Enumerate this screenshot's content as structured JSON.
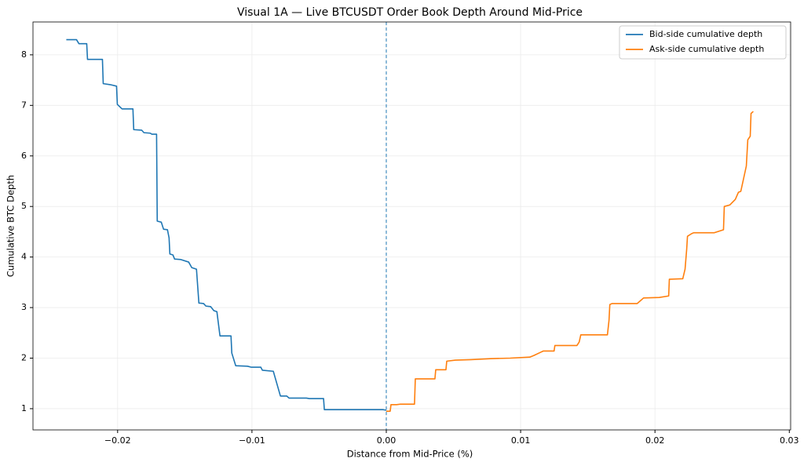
{
  "chart_data": {
    "type": "line",
    "title": "Visual 1A — Live BTCUSDT Order Book Depth Around Mid-Price",
    "x_label": "Distance from Mid-Price (%)",
    "y_label": "Cumulative BTC Depth",
    "xlim": [
      -0.0263,
      0.0301
    ],
    "ylim": [
      0.58,
      8.65
    ],
    "xticks": [
      {
        "value": -0.02,
        "label": "−0.02"
      },
      {
        "value": -0.01,
        "label": "−0.01"
      },
      {
        "value": 0,
        "label": "0.00"
      },
      0.01,
      0.02,
      0.03
    ],
    "yticks": [
      1,
      2,
      3,
      4,
      5,
      6,
      7,
      8
    ],
    "grid": true,
    "legend": "upper right",
    "vline": 0,
    "vline_color": "#1f77b4",
    "series": [
      {
        "name": "Bid-side cumulative depth",
        "color": "#1f77b4",
        "x": [
          -0.02382,
          -0.02306,
          -0.02288,
          -0.0223,
          -0.02224,
          -0.02113,
          -0.02107,
          -0.02055,
          -0.02008,
          -0.02002,
          -0.01967,
          -0.01886,
          -0.0188,
          -0.01821,
          -0.01804,
          -0.01757,
          -0.01745,
          -0.0171,
          -0.01705,
          -0.01675,
          -0.01658,
          -0.01629,
          -0.01617,
          -0.01611,
          -0.01588,
          -0.01576,
          -0.01529,
          -0.01471,
          -0.01448,
          -0.01413,
          -0.01395,
          -0.0136,
          -0.01343,
          -0.01308,
          -0.01284,
          -0.01261,
          -0.01238,
          -0.01156,
          -0.0115,
          -0.01121,
          -0.01033,
          -0.01004,
          -0.00934,
          -0.00922,
          -0.00841,
          -0.00788,
          -0.00741,
          -0.00724,
          -0.00595,
          -0.00572,
          -0.00467,
          -0.00461,
          -0.00304,
          -0.00023,
          0
        ],
        "values": [
          8.3,
          8.3,
          8.22,
          8.22,
          7.91,
          7.91,
          7.43,
          7.41,
          7.38,
          7.02,
          6.93,
          6.93,
          6.52,
          6.51,
          6.46,
          6.45,
          6.43,
          6.43,
          4.71,
          4.69,
          4.55,
          4.54,
          4.38,
          4.06,
          4.04,
          3.96,
          3.95,
          3.9,
          3.79,
          3.76,
          3.09,
          3.08,
          3.03,
          3.02,
          2.94,
          2.92,
          2.44,
          2.44,
          2.1,
          1.85,
          1.84,
          1.82,
          1.82,
          1.76,
          1.74,
          1.25,
          1.25,
          1.21,
          1.21,
          1.2,
          1.2,
          0.98,
          0.98,
          0.98,
          0.97
        ]
      },
      {
        "name": "Ask-side cumulative depth",
        "color": "#ff7f0e",
        "x": [
          0,
          0.00029,
          0.00035,
          0.00076,
          0.00105,
          0.0021,
          0.00216,
          0.00257,
          0.00362,
          0.00368,
          0.00444,
          0.0045,
          0.00514,
          0.0063,
          0.00776,
          0.00922,
          0.01068,
          0.01097,
          0.01144,
          0.01168,
          0.01249,
          0.01255,
          0.01419,
          0.01436,
          0.01448,
          0.01646,
          0.01658,
          0.01664,
          0.01681,
          0.01868,
          0.01915,
          0.02032,
          0.02102,
          0.02107,
          0.02207,
          0.02224,
          0.02236,
          0.02242,
          0.02271,
          0.02288,
          0.0244,
          0.0251,
          0.02516,
          0.02557,
          0.02598,
          0.02621,
          0.02639,
          0.0268,
          0.02691,
          0.02709,
          0.02715,
          0.02732
        ],
        "values": [
          0.95,
          0.95,
          1.08,
          1.08,
          1.09,
          1.09,
          1.59,
          1.59,
          1.59,
          1.77,
          1.77,
          1.94,
          1.96,
          1.97,
          1.99,
          2.0,
          2.02,
          2.05,
          2.11,
          2.14,
          2.14,
          2.25,
          2.25,
          2.32,
          2.46,
          2.46,
          2.75,
          3.06,
          3.08,
          3.08,
          3.19,
          3.2,
          3.23,
          3.56,
          3.57,
          3.76,
          4.15,
          4.41,
          4.46,
          4.48,
          4.48,
          4.54,
          5.0,
          5.03,
          5.14,
          5.28,
          5.3,
          5.8,
          6.32,
          6.39,
          6.84,
          6.88
        ]
      }
    ]
  }
}
